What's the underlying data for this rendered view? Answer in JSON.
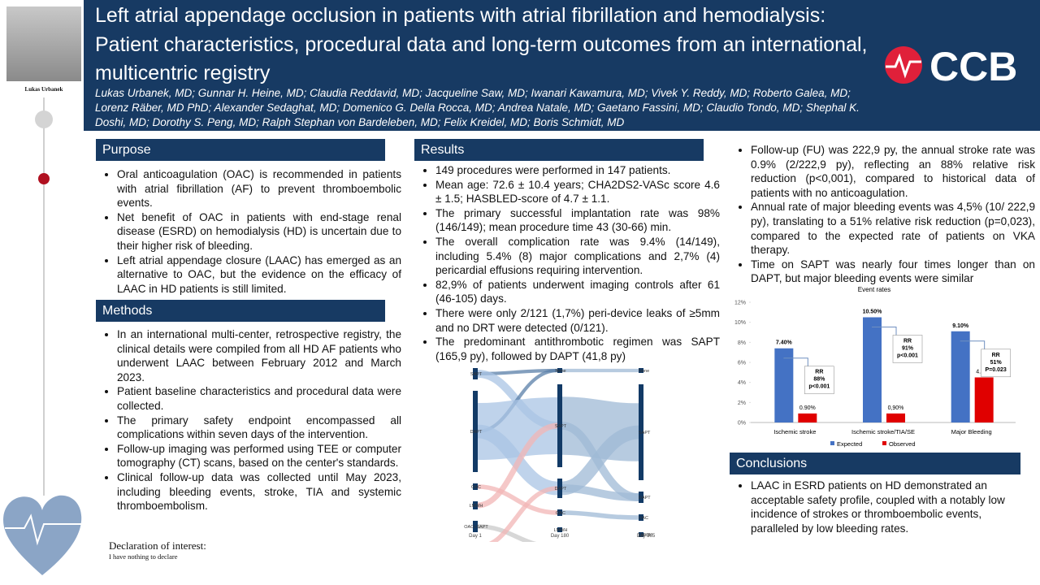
{
  "header": {
    "presenter": "Lukas Urbanek",
    "title": "Left atrial appendage occlusion in patients with atrial fibrillation and hemodialysis: Patient characteristics, procedural data and long-term outcomes from an international, multicentric registry",
    "authors": "Lukas Urbanek, MD; Gunnar H. Heine, MD; Claudia Reddavid, MD; Jacqueline Saw, MD; Iwanari Kawamura, MD; Vivek Y. Reddy, MD; Roberto Galea, MD; Lorenz Räber, MD PhD; Alexander Sedaghat, MD; Domenico G. Della Rocca, MD; Andrea Natale, MD; Gaetano Fassini, MD; Claudio Tondo, MD; Shephal K. Doshi, MD; Dorothy S. Peng, MD; Ralph Stephan von Bardeleben, MD; Felix Kreidel, MD; Boris Schmidt, MD",
    "logo": "CCB"
  },
  "purpose": {
    "heading": "Purpose",
    "bullets": [
      "Oral anticoagulation (OAC) is recommended in patients with atrial fibrillation (AF) to prevent thromboembolic events.",
      "Net benefit of OAC in patients with end-stage renal disease (ESRD) on hemodialysis (HD) is uncertain due to their higher risk of bleeding.",
      "Left atrial appendage closure (LAAC) has emerged as an alternative to OAC, but the evidence on the efficacy of LAAC in HD patients is still limited."
    ]
  },
  "methods": {
    "heading": "Methods",
    "bullets": [
      "In an international multi-center, retrospective registry, the clinical details were compiled from all HD AF patients who underwent LAAC between February 2012 and March 2023.",
      "Patient baseline characteristics and procedural data were collected.",
      "The primary safety endpoint encompassed all complications within seven days of the intervention.",
      "Follow-up imaging was performed using TEE or computer tomography (CT) scans, based on the center's standards.",
      "Clinical follow-up data was collected until May 2023, including bleeding events, stroke, TIA and systemic thromboembolism."
    ]
  },
  "declaration": {
    "heading": "Declaration of interest:",
    "text": "I have nothing to declare"
  },
  "results": {
    "heading": "Results",
    "bullets": [
      "149 procedures were performed in 147 patients.",
      "Mean age: 72.6 ± 10.4 years; CHA2DS2-VASc score 4.6 ± 1.5; HASBLED-score of 4.7 ± 1.1.",
      "The primary successful implantation rate was 98% (146/149);  mean procedure time 43 (30-66) min.",
      "The overall complication rate was 9.4% (14/149), including 5.4% (8) major complications and 2,7% (4) pericardial effusions requiring intervention.",
      "82,9% of patients underwent imaging controls after 61 (46-105) days.",
      "There were only 2/121 (1,7%) peri-device leaks of ≥5mm and no DRT were detected (0/121).",
      "The predominant antithrombotic regimen was SAPT (165,9 py),   followed by DAPT (41,8 py)"
    ],
    "more_bullets": [
      "Follow-up (FU) was 222,9 py, the annual stroke rate was 0.9% (2/222,9 py), reflecting an 88% relative risk reduction (p<0,001), compared to historical data of patients with no anticoagulation.",
      "Annual rate of major bleeding events was 4,5% (10/ 222,9 py), translating to a 51% relative risk reduction (p=0,023), compared to the expected rate of patients on VKA therapy.",
      "Time on SAPT was nearly four times longer than on DAPT, but major bleeding events were similar"
    ]
  },
  "sankey": {
    "stages": [
      "Day 1",
      "Day 180",
      "Day 365"
    ],
    "nodes": [
      [
        "SAPT",
        "DAPT",
        "OAC",
        "LMWH",
        "OAC+SAPT",
        "OAC+DAPT"
      ],
      [
        "None",
        "SAPT",
        "DAPT",
        "OAC",
        "LMWH",
        "OAC+SAPT"
      ],
      [
        "None",
        "SAPT",
        "DAPT",
        "OAC",
        "LMWH",
        "OAC+SAPT",
        "OAC+DAPT"
      ]
    ]
  },
  "chart_data": {
    "type": "bar",
    "title": "Event rates",
    "categories": [
      "Ischemic stroke",
      "Ischemic stroke/TIA/SE",
      "Major Bleeding"
    ],
    "series": [
      {
        "name": "Expected",
        "color": "#4472c4",
        "values": [
          7.4,
          10.5,
          9.1
        ],
        "value_labels": [
          "7.40%",
          "10.50%",
          "9.10%"
        ]
      },
      {
        "name": "Observed",
        "color": "#e00000",
        "values": [
          0.9,
          0.9,
          4.5
        ],
        "value_labels": [
          "0.90%",
          "0,90%",
          "4.50%"
        ]
      }
    ],
    "ylim": [
      0,
      12
    ],
    "yticks": [
      {
        "value": 0,
        "label": "0%"
      },
      {
        "value": 2,
        "label": "2%"
      },
      {
        "value": 4,
        "label": "4%"
      },
      {
        "value": 6,
        "label": "6%"
      },
      {
        "value": 8,
        "label": "8%"
      },
      {
        "value": 10,
        "label": "10%"
      },
      {
        "value": 12,
        "label": "12%"
      }
    ],
    "annotations": [
      [
        "RR",
        "88%",
        "p<0.001"
      ],
      [
        "RR",
        "91%",
        "p<0.001"
      ],
      [
        "RR",
        "51%",
        "P=0.023"
      ]
    ],
    "legend": "bottom"
  },
  "conclusions": {
    "heading": "Conclusions",
    "bullets": [
      "LAAC in ESRD patients on HD demonstrated an acceptable safety profile, coupled with a notably low incidence of strokes or thromboembolic events, paralleled by low bleeding rates."
    ]
  }
}
